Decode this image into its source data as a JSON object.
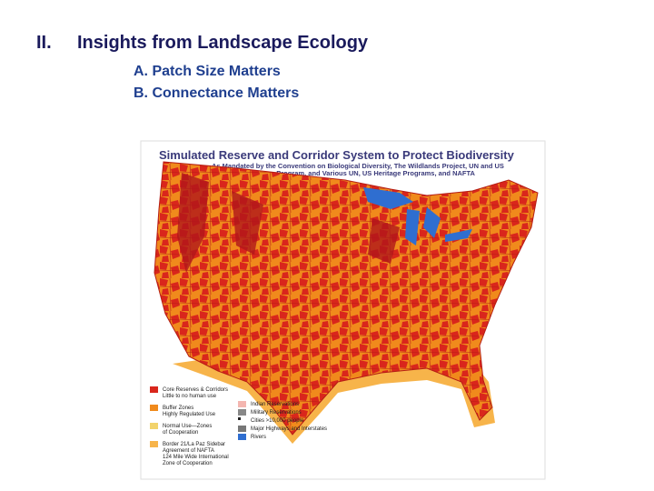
{
  "header": {
    "number": "II.",
    "title": "Insights from Landscape Ecology"
  },
  "bullets": [
    "A. Patch Size Matters",
    "B. Connectance Matters"
  ],
  "figure": {
    "title": "Simulated Reserve and Corridor System to Protect Biodiversity",
    "subtitle": [
      "As Mandated by the Convention on Biological Diversity, The Wildlands Project, UN and US",
      "Man and Biosphere Program, and Various UN, US Heritage Programs, and NAFTA"
    ],
    "legend": [
      [
        "Core Reserves & Corridors",
        "Little to no human use"
      ],
      [
        "Buffer Zones",
        "Highly Regulated Use"
      ],
      [
        "Normal Use—Zones",
        "of Cooperation"
      ],
      [
        "Border 21/La Paz Sidebar",
        "Agreement of NAFTA",
        "124 Mile Wide International",
        "Zone of Cooperation"
      ],
      [
        "Indian Reservations"
      ],
      [
        "Military Reservations"
      ],
      [
        "Cities >10,000 people"
      ],
      [
        "Major Highways and Interstates"
      ],
      [
        "Rivers"
      ]
    ]
  }
}
